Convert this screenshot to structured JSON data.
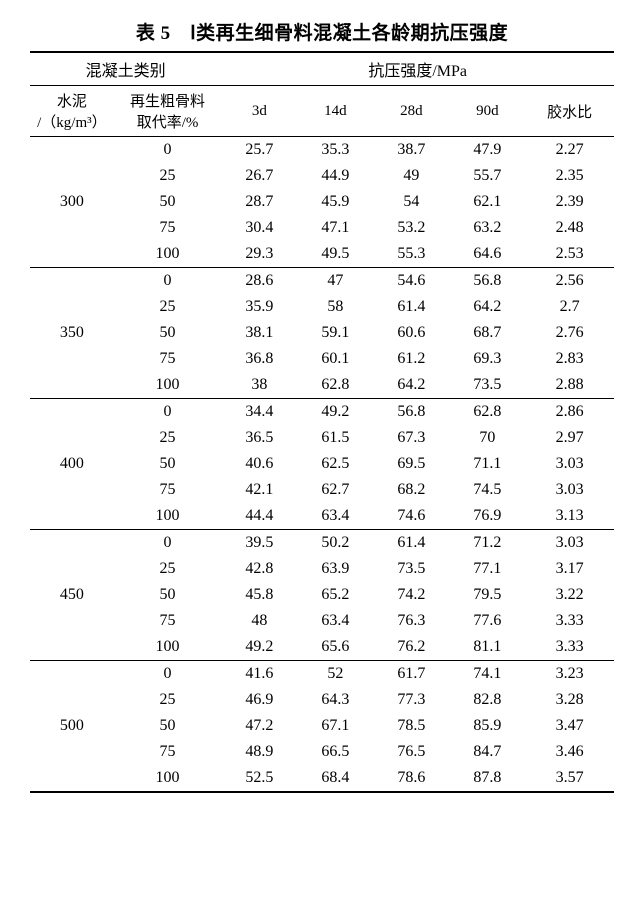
{
  "title": "表 5　Ⅰ类再生细骨料混凝土各龄期抗压强度",
  "header": {
    "group1": "混凝土类别",
    "group2": "抗压强度/MPa",
    "col1_line1": "水泥",
    "col1_line2": "/（kg/m³）",
    "col2_line1": "再生粗骨料",
    "col2_line2": "取代率/%",
    "d3": "3d",
    "d14": "14d",
    "d28": "28d",
    "d90": "90d",
    "ratio": "胶水比"
  },
  "groups": [
    {
      "cement": "300",
      "rows": [
        {
          "rate": "0",
          "v3": "25.7",
          "v14": "35.3",
          "v28": "38.7",
          "v90": "47.9",
          "r": "2.27"
        },
        {
          "rate": "25",
          "v3": "26.7",
          "v14": "44.9",
          "v28": "49",
          "v90": "55.7",
          "r": "2.35"
        },
        {
          "rate": "50",
          "v3": "28.7",
          "v14": "45.9",
          "v28": "54",
          "v90": "62.1",
          "r": "2.39"
        },
        {
          "rate": "75",
          "v3": "30.4",
          "v14": "47.1",
          "v28": "53.2",
          "v90": "63.2",
          "r": "2.48"
        },
        {
          "rate": "100",
          "v3": "29.3",
          "v14": "49.5",
          "v28": "55.3",
          "v90": "64.6",
          "r": "2.53"
        }
      ]
    },
    {
      "cement": "350",
      "rows": [
        {
          "rate": "0",
          "v3": "28.6",
          "v14": "47",
          "v28": "54.6",
          "v90": "56.8",
          "r": "2.56"
        },
        {
          "rate": "25",
          "v3": "35.9",
          "v14": "58",
          "v28": "61.4",
          "v90": "64.2",
          "r": "2.7"
        },
        {
          "rate": "50",
          "v3": "38.1",
          "v14": "59.1",
          "v28": "60.6",
          "v90": "68.7",
          "r": "2.76"
        },
        {
          "rate": "75",
          "v3": "36.8",
          "v14": "60.1",
          "v28": "61.2",
          "v90": "69.3",
          "r": "2.83"
        },
        {
          "rate": "100",
          "v3": "38",
          "v14": "62.8",
          "v28": "64.2",
          "v90": "73.5",
          "r": "2.88"
        }
      ]
    },
    {
      "cement": "400",
      "rows": [
        {
          "rate": "0",
          "v3": "34.4",
          "v14": "49.2",
          "v28": "56.8",
          "v90": "62.8",
          "r": "2.86"
        },
        {
          "rate": "25",
          "v3": "36.5",
          "v14": "61.5",
          "v28": "67.3",
          "v90": "70",
          "r": "2.97"
        },
        {
          "rate": "50",
          "v3": "40.6",
          "v14": "62.5",
          "v28": "69.5",
          "v90": "71.1",
          "r": "3.03"
        },
        {
          "rate": "75",
          "v3": "42.1",
          "v14": "62.7",
          "v28": "68.2",
          "v90": "74.5",
          "r": "3.03"
        },
        {
          "rate": "100",
          "v3": "44.4",
          "v14": "63.4",
          "v28": "74.6",
          "v90": "76.9",
          "r": "3.13"
        }
      ]
    },
    {
      "cement": "450",
      "rows": [
        {
          "rate": "0",
          "v3": "39.5",
          "v14": "50.2",
          "v28": "61.4",
          "v90": "71.2",
          "r": "3.03"
        },
        {
          "rate": "25",
          "v3": "42.8",
          "v14": "63.9",
          "v28": "73.5",
          "v90": "77.1",
          "r": "3.17"
        },
        {
          "rate": "50",
          "v3": "45.8",
          "v14": "65.2",
          "v28": "74.2",
          "v90": "79.5",
          "r": "3.22"
        },
        {
          "rate": "75",
          "v3": "48",
          "v14": "63.4",
          "v28": "76.3",
          "v90": "77.6",
          "r": "3.33"
        },
        {
          "rate": "100",
          "v3": "49.2",
          "v14": "65.6",
          "v28": "76.2",
          "v90": "81.1",
          "r": "3.33"
        }
      ]
    },
    {
      "cement": "500",
      "rows": [
        {
          "rate": "0",
          "v3": "41.6",
          "v14": "52",
          "v28": "61.7",
          "v90": "74.1",
          "r": "3.23"
        },
        {
          "rate": "25",
          "v3": "46.9",
          "v14": "64.3",
          "v28": "77.3",
          "v90": "82.8",
          "r": "3.28"
        },
        {
          "rate": "50",
          "v3": "47.2",
          "v14": "67.1",
          "v28": "78.5",
          "v90": "85.9",
          "r": "3.47"
        },
        {
          "rate": "75",
          "v3": "48.9",
          "v14": "66.5",
          "v28": "76.5",
          "v90": "84.7",
          "r": "3.46"
        },
        {
          "rate": "100",
          "v3": "52.5",
          "v14": "68.4",
          "v28": "78.6",
          "v90": "87.8",
          "r": "3.57"
        }
      ]
    }
  ]
}
